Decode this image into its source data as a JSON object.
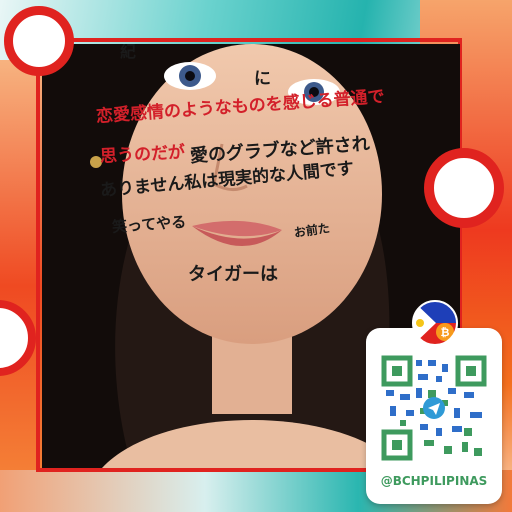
{
  "overlay_text": {
    "line1": "紀",
    "line2": "に",
    "line3": "恋愛感情のようなものを感じる普通で",
    "line4": "思うのだが",
    "line5": "愛のグラブなど許され",
    "line6": "ありません私は現実的な人間です",
    "line7": "笑ってやる",
    "line8": "お前た",
    "line9": "タイガーは"
  },
  "qr_card": {
    "handle": "@BCHPILIPINAS",
    "badge_icon": "philippine-flag-bitcoin-icon"
  },
  "colors": {
    "frame_red": "#e0231f",
    "accent_orange": "#f36f1e",
    "accent_teal": "#26b6b0",
    "qr_green": "#3e9a5e",
    "qr_blue": "#2f6ec9"
  }
}
